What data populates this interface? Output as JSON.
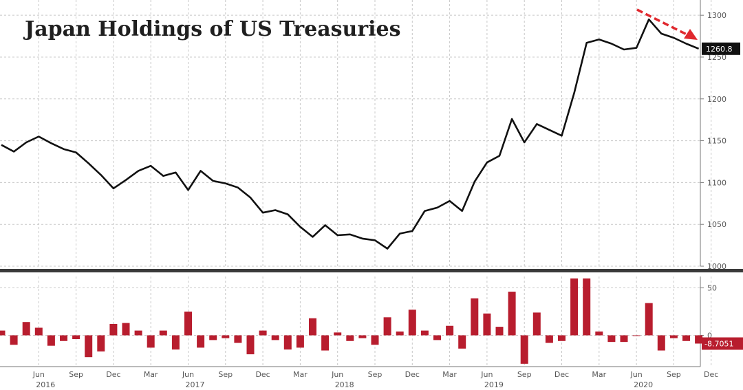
{
  "chart_data": [
    {
      "type": "line",
      "title": "Japan Holdings of US Treasuries",
      "ylim": [
        1000,
        1310
      ],
      "yticks": [
        1000,
        1050,
        1100,
        1150,
        1200,
        1250,
        1300
      ],
      "ytick_labels": [
        "1000",
        "1050",
        "1100",
        "1150",
        "1200",
        "1250",
        "1300"
      ],
      "x": [
        "2016-03",
        "2016-04",
        "2016-05",
        "2016-06",
        "2016-07",
        "2016-08",
        "2016-09",
        "2016-10",
        "2016-11",
        "2016-12",
        "2017-01",
        "2017-02",
        "2017-03",
        "2017-04",
        "2017-05",
        "2017-06",
        "2017-07",
        "2017-08",
        "2017-09",
        "2017-10",
        "2017-11",
        "2017-12",
        "2018-01",
        "2018-02",
        "2018-03",
        "2018-04",
        "2018-05",
        "2018-06",
        "2018-07",
        "2018-08",
        "2018-09",
        "2018-10",
        "2018-11",
        "2018-12",
        "2019-01",
        "2019-02",
        "2019-03",
        "2019-04",
        "2019-05",
        "2019-06",
        "2019-07",
        "2019-08",
        "2019-09",
        "2019-10",
        "2019-11",
        "2019-12",
        "2020-01",
        "2020-02",
        "2020-03",
        "2020-04",
        "2020-05",
        "2020-06",
        "2020-07",
        "2020-08",
        "2020-09",
        "2020-10",
        "2020-11"
      ],
      "series": [
        {
          "values": [
            1145,
            1137,
            1148,
            1155,
            1147,
            1140,
            1136,
            1123,
            1109,
            1093,
            1103,
            1114,
            1120,
            1108,
            1112,
            1091,
            1114,
            1102,
            1099,
            1094,
            1082,
            1064,
            1067,
            1062,
            1047,
            1035,
            1049,
            1037,
            1038,
            1033,
            1031,
            1021,
            1039,
            1042,
            1066,
            1070,
            1078,
            1066,
            1101,
            1124,
            1132,
            1176,
            1148,
            1170,
            1163,
            1156,
            1207,
            1267,
            1271,
            1266,
            1259,
            1261,
            1295,
            1278,
            1273,
            1266,
            1260
          ]
        }
      ],
      "last_value_label": "1260.8",
      "trend_arrow_color": "#e0282e",
      "line_color": "#111111",
      "grid": true
    },
    {
      "type": "bar",
      "ylim": [
        -33,
        62
      ],
      "yticks": [
        0,
        50
      ],
      "ytick_labels": [
        "0",
        "50"
      ],
      "x": [
        "2016-03",
        "2016-04",
        "2016-05",
        "2016-06",
        "2016-07",
        "2016-08",
        "2016-09",
        "2016-10",
        "2016-11",
        "2016-12",
        "2017-01",
        "2017-02",
        "2017-03",
        "2017-04",
        "2017-05",
        "2017-06",
        "2017-07",
        "2017-08",
        "2017-09",
        "2017-10",
        "2017-11",
        "2017-12",
        "2018-01",
        "2018-02",
        "2018-03",
        "2018-04",
        "2018-05",
        "2018-06",
        "2018-07",
        "2018-08",
        "2018-09",
        "2018-10",
        "2018-11",
        "2018-12",
        "2019-01",
        "2019-02",
        "2019-03",
        "2019-04",
        "2019-05",
        "2019-06",
        "2019-07",
        "2019-08",
        "2019-09",
        "2019-10",
        "2019-11",
        "2019-12",
        "2020-01",
        "2020-02",
        "2020-03",
        "2020-04",
        "2020-05",
        "2020-06",
        "2020-07",
        "2020-08",
        "2020-09",
        "2020-10",
        "2020-11"
      ],
      "series": [
        {
          "values": [
            5,
            -10,
            14,
            8,
            -11,
            -6,
            -4,
            -23,
            -17,
            12,
            13,
            5,
            -13,
            5,
            -15,
            25,
            -13,
            -5,
            -3,
            -8,
            -20,
            5,
            -5,
            -15,
            -13,
            18,
            -16,
            3,
            -6,
            -3,
            -10,
            19,
            4,
            27,
            5,
            -5,
            10,
            -14,
            39,
            23,
            9,
            46,
            -30,
            24,
            -8,
            -6,
            60,
            60,
            4,
            -7,
            -7,
            0,
            34,
            -16,
            -3,
            -6,
            -8.7051
          ]
        }
      ],
      "last_value_label": "-8.7051",
      "bar_color": "#b81d2e",
      "grid": true
    }
  ],
  "x_axis": {
    "month_labels": [
      {
        "label": "Jun",
        "x": "2016-06"
      },
      {
        "label": "Sep",
        "x": "2016-09"
      },
      {
        "label": "Dec",
        "x": "2016-12"
      },
      {
        "label": "Mar",
        "x": "2017-03"
      },
      {
        "label": "Jun",
        "x": "2017-06"
      },
      {
        "label": "Sep",
        "x": "2017-09"
      },
      {
        "label": "Dec",
        "x": "2017-12"
      },
      {
        "label": "Mar",
        "x": "2018-03"
      },
      {
        "label": "Jun",
        "x": "2018-06"
      },
      {
        "label": "Sep",
        "x": "2018-09"
      },
      {
        "label": "Dec",
        "x": "2018-12"
      },
      {
        "label": "Mar",
        "x": "2019-03"
      },
      {
        "label": "Jun",
        "x": "2019-06"
      },
      {
        "label": "Sep",
        "x": "2019-09"
      },
      {
        "label": "Dec",
        "x": "2019-12"
      },
      {
        "label": "Mar",
        "x": "2020-03"
      },
      {
        "label": "Jun",
        "x": "2020-06"
      },
      {
        "label": "Sep",
        "x": "2020-09"
      },
      {
        "label": "Dec",
        "x": "2020-12"
      }
    ],
    "year_labels": [
      {
        "label": "2016",
        "x": "2016-06"
      },
      {
        "label": "2017",
        "x": "2017-06"
      },
      {
        "label": "2018",
        "x": "2018-06"
      },
      {
        "label": "2019",
        "x": "2019-06"
      },
      {
        "label": "2020",
        "x": "2020-06"
      }
    ]
  }
}
